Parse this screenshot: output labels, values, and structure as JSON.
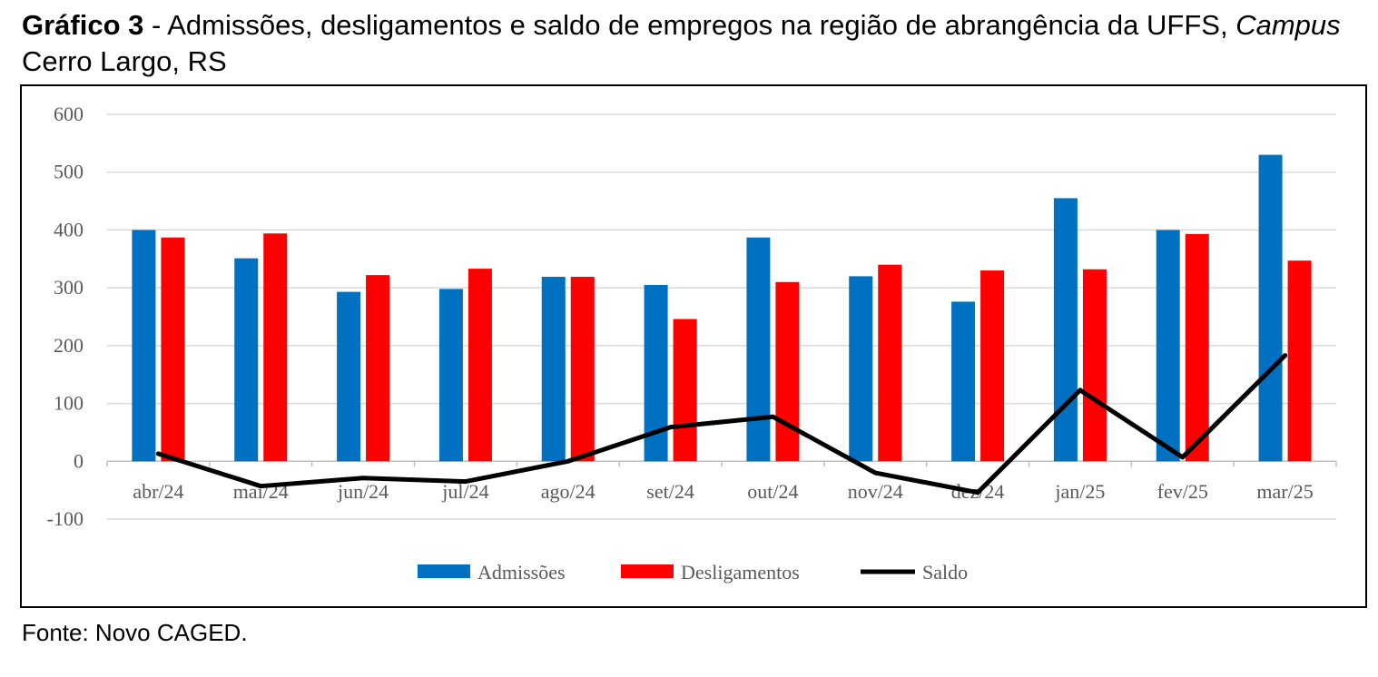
{
  "caption": {
    "label": "Gráfico 3",
    "separator": " - ",
    "text_part1": "Admissões, desligamentos e saldo de empregos na região de abrangência da UFFS, ",
    "text_italic": "Campus",
    "text_part2": " Cerro Largo, RS"
  },
  "source": "Fonte: Novo CAGED.",
  "chart_data": {
    "type": "bar",
    "categories": [
      "abr/24",
      "mai/24",
      "jun/24",
      "jul/24",
      "ago/24",
      "set/24",
      "out/24",
      "nov/24",
      "dez/24",
      "jan/25",
      "fev/25",
      "mar/25"
    ],
    "series": [
      {
        "name": "Admissões",
        "kind": "bar",
        "color": "#0070C0",
        "values": [
          400,
          351,
          293,
          298,
          319,
          305,
          387,
          320,
          276,
          455,
          400,
          530
        ]
      },
      {
        "name": "Desligamentos",
        "kind": "bar",
        "color": "#FF0000",
        "values": [
          387,
          394,
          322,
          333,
          319,
          246,
          310,
          340,
          330,
          332,
          393,
          347
        ]
      },
      {
        "name": "Saldo",
        "kind": "line",
        "color": "#000000",
        "values": [
          13,
          -43,
          -29,
          -35,
          0,
          59,
          77,
          -20,
          -54,
          123,
          7,
          183
        ]
      }
    ],
    "yticks": [
      "600",
      "500",
      "400",
      "300",
      "200",
      "100",
      "0",
      "-100"
    ],
    "ylim": [
      -100,
      600
    ],
    "grid": true,
    "legend": "bottom"
  }
}
